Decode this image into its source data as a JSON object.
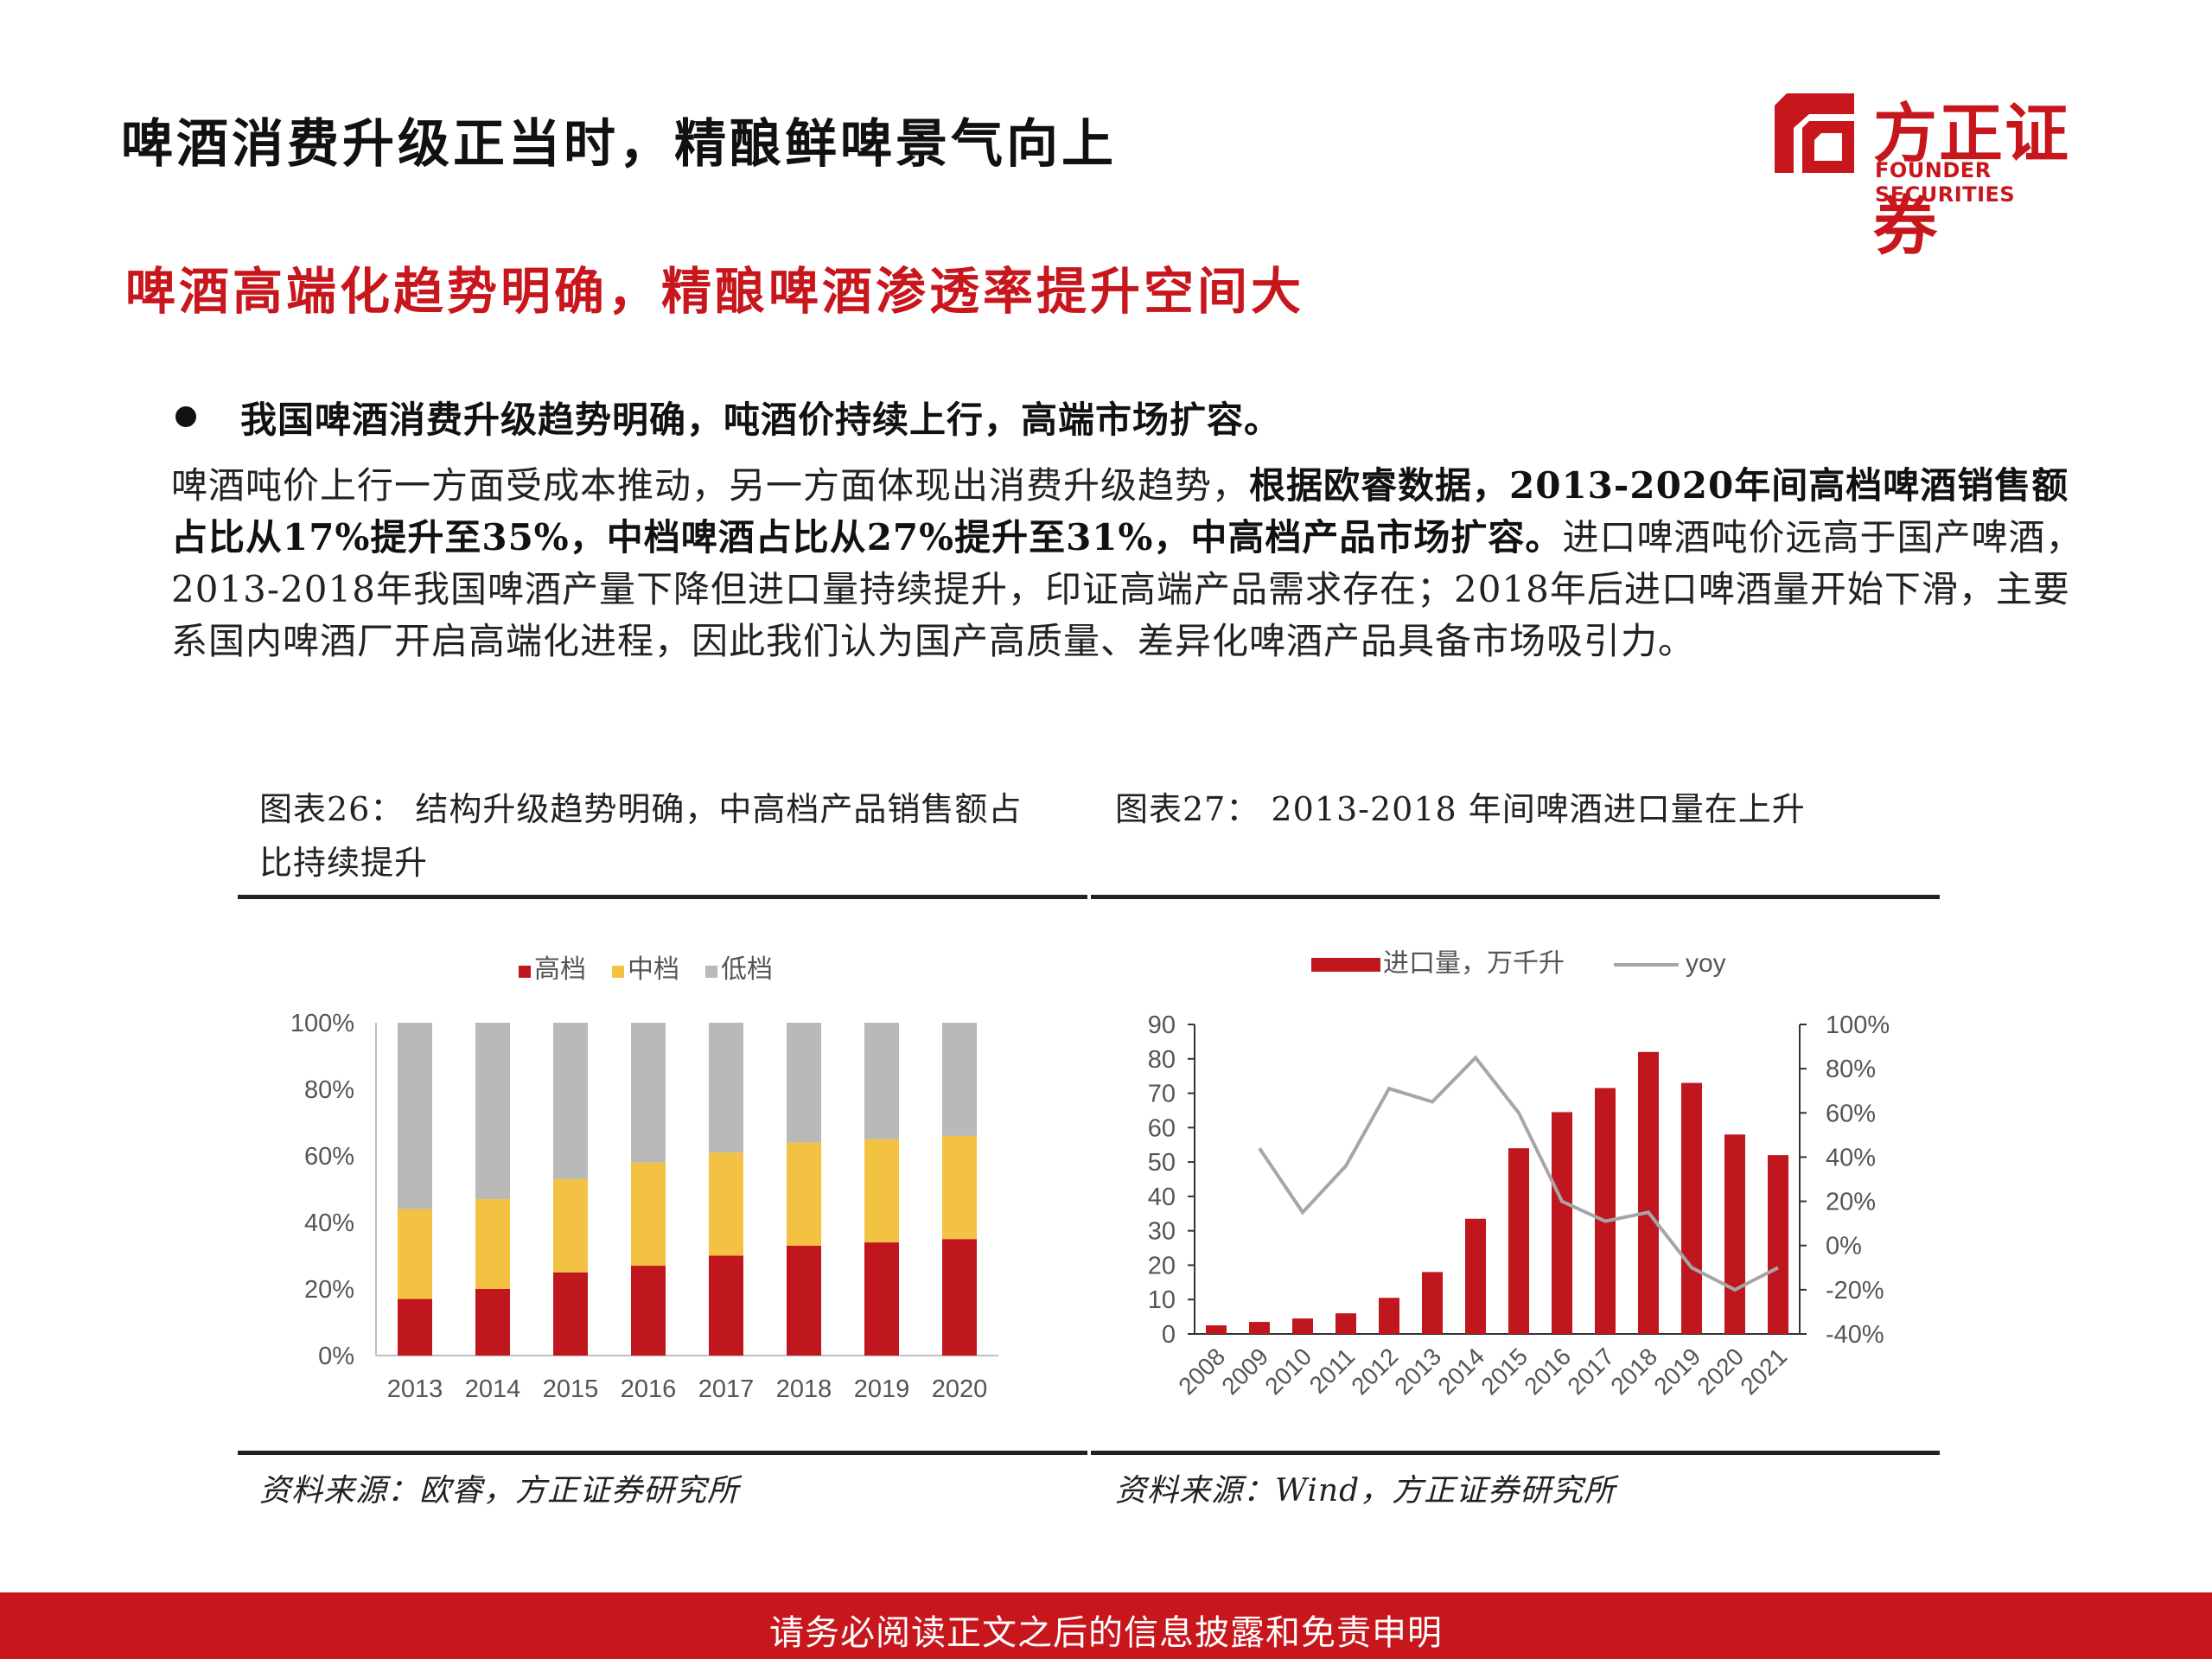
{
  "header": {
    "title": "啤酒消费升级正当时，精酿鲜啤景气向上",
    "logo_cn": "方正证券",
    "logo_en": "FOUNDER SECURITIES"
  },
  "subtitle": "啤酒高端化趋势明确，精酿啤酒渗透率提升空间大",
  "bullet": "我国啤酒消费升级趋势明确，吨酒价持续上行，高端市场扩容。",
  "body": {
    "p1": "啤酒吨价上行一方面受成本推动，另一方面体现出消费升级趋势，",
    "b1": "根据欧睿数据，2013-2020年间高档啤酒销售额占比从17%提升至35%，中档啤酒占比从27%提升至31%，中高档产品市场扩容。",
    "p2": "进口啤酒吨价远高于国产啤酒，2013-2018年我国啤酒产量下降但进口量持续提升，印证高端产品需求存在；2018年后进口啤酒量开始下滑，主要系国内啤酒厂开启高端化进程，因此我们认为国产高质量、差异化啤酒产品具备市场吸引力。"
  },
  "fig26": {
    "title_line1": "图表26：  结构升级趋势明确，中高档产品销售额占",
    "title_line2": "比持续提升",
    "source": "资料来源：欧睿，方正证券研究所"
  },
  "fig27": {
    "title": "图表27：  2013-2018 年间啤酒进口量在上升",
    "source": "资料来源：Wind，方正证券研究所"
  },
  "footer": "请务必阅读正文之后的信息披露和免责申明",
  "colors": {
    "red": "#c0171e",
    "yellow": "#f4c242",
    "gray": "#b9b9b9",
    "line": "#a6a6a6"
  },
  "chart_data": [
    {
      "type": "bar",
      "stacked": true,
      "categories": [
        "2013",
        "2014",
        "2015",
        "2016",
        "2017",
        "2018",
        "2019",
        "2020"
      ],
      "series": [
        {
          "name": "高档",
          "values": [
            17,
            20,
            25,
            27,
            30,
            33,
            34,
            35
          ]
        },
        {
          "name": "中档",
          "values": [
            27,
            27,
            28,
            31,
            31,
            31,
            31,
            31
          ]
        },
        {
          "name": "低档",
          "values": [
            56,
            53,
            47,
            42,
            39,
            36,
            35,
            34
          ]
        }
      ],
      "yticks": [
        "0%",
        "20%",
        "40%",
        "60%",
        "80%",
        "100%"
      ],
      "ylim": [
        0,
        100
      ],
      "legend": "top-center"
    },
    {
      "type": "bar+line",
      "categories": [
        "2008",
        "2009",
        "2010",
        "2011",
        "2012",
        "2013",
        "2014",
        "2015",
        "2016",
        "2017",
        "2018",
        "2019",
        "2020",
        "2021"
      ],
      "series": [
        {
          "name": "进口量，万千升",
          "type": "bar",
          "axis": "left",
          "values": [
            2.5,
            3.5,
            4.5,
            6,
            10.5,
            18,
            33.5,
            54,
            64.5,
            71.5,
            82,
            73,
            58,
            52
          ]
        },
        {
          "name": "yoy",
          "type": "line",
          "axis": "right",
          "values": [
            null,
            44,
            15,
            36,
            71,
            65,
            85,
            60,
            20,
            11,
            15,
            -10,
            -20,
            -10
          ]
        }
      ],
      "yticks_left": [
        "0",
        "10",
        "20",
        "30",
        "40",
        "50",
        "60",
        "70",
        "80",
        "90"
      ],
      "ylim_left": [
        0,
        90
      ],
      "yticks_right": [
        "-40%",
        "-20%",
        "0%",
        "20%",
        "40%",
        "60%",
        "80%",
        "100%"
      ],
      "ylim_right": [
        -40,
        100
      ],
      "legend": "top-center"
    }
  ]
}
